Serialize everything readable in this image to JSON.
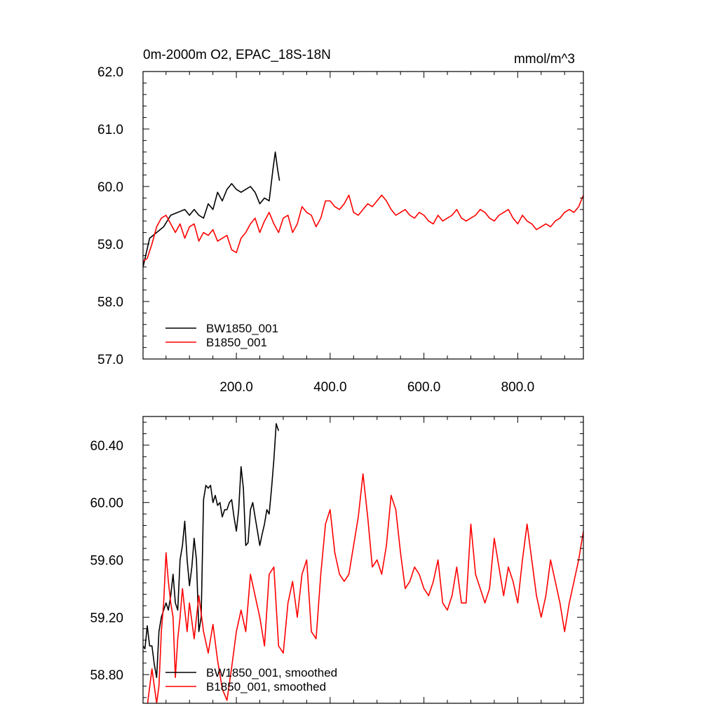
{
  "chart_data": [
    {
      "type": "line",
      "title": "0m-2000m O2, EPAC_18S-18N",
      "units": "mmol/m^3",
      "xlim": [
        1,
        940
      ],
      "ylim": [
        57.0,
        62.0
      ],
      "x_major_ticks": [
        200,
        400,
        600,
        800
      ],
      "x_tick_labels": [
        "200.0",
        "400.0",
        "600.0",
        "800.0"
      ],
      "y_major_ticks": [
        57,
        58,
        59,
        60,
        61,
        62
      ],
      "y_tick_labels": [
        "57.0",
        "58.0",
        "59.0",
        "60.0",
        "61.0",
        "62.0"
      ],
      "legend_position": "bottom-left",
      "series": [
        {
          "name": "BW1850_001",
          "color": "#000000",
          "x": [
            1,
            15,
            30,
            45,
            60,
            75,
            90,
            100,
            110,
            120,
            130,
            140,
            150,
            160,
            170,
            180,
            190,
            200,
            210,
            220,
            230,
            240,
            250,
            260,
            270,
            278,
            283,
            288,
            292
          ],
          "y": [
            58.6,
            59.1,
            59.2,
            59.3,
            59.5,
            59.55,
            59.6,
            59.5,
            59.6,
            59.5,
            59.45,
            59.7,
            59.6,
            59.9,
            59.75,
            59.95,
            60.05,
            59.95,
            59.9,
            59.95,
            60.0,
            59.9,
            59.7,
            59.8,
            59.75,
            60.3,
            60.6,
            60.3,
            60.1
          ]
        },
        {
          "name": "B1850_001",
          "color": "#ff0000",
          "x": [
            1,
            10,
            20,
            30,
            40,
            50,
            60,
            70,
            80,
            90,
            100,
            110,
            120,
            130,
            140,
            150,
            160,
            170,
            180,
            190,
            200,
            210,
            220,
            230,
            240,
            250,
            260,
            270,
            280,
            290,
            300,
            310,
            320,
            330,
            340,
            350,
            360,
            370,
            380,
            390,
            400,
            410,
            420,
            430,
            440,
            450,
            460,
            470,
            480,
            490,
            500,
            510,
            520,
            530,
            540,
            550,
            560,
            570,
            580,
            590,
            600,
            610,
            620,
            630,
            640,
            650,
            660,
            670,
            680,
            690,
            700,
            710,
            720,
            730,
            740,
            750,
            760,
            770,
            780,
            790,
            800,
            810,
            820,
            830,
            840,
            850,
            860,
            870,
            880,
            890,
            900,
            910,
            920,
            930,
            940
          ],
          "y": [
            58.7,
            58.75,
            59.0,
            59.3,
            59.45,
            59.5,
            59.35,
            59.2,
            59.35,
            59.1,
            59.3,
            59.35,
            59.05,
            59.2,
            59.15,
            59.25,
            59.05,
            59.1,
            59.15,
            58.9,
            58.85,
            59.1,
            59.2,
            59.35,
            59.45,
            59.2,
            59.4,
            59.55,
            59.35,
            59.2,
            59.45,
            59.5,
            59.2,
            59.35,
            59.65,
            59.55,
            59.5,
            59.3,
            59.45,
            59.75,
            59.75,
            59.65,
            59.6,
            59.7,
            59.85,
            59.55,
            59.5,
            59.6,
            59.7,
            59.65,
            59.75,
            59.85,
            59.75,
            59.6,
            59.5,
            59.55,
            59.6,
            59.5,
            59.45,
            59.55,
            59.5,
            59.4,
            59.35,
            59.5,
            59.4,
            59.45,
            59.5,
            59.6,
            59.45,
            59.4,
            59.45,
            59.5,
            59.6,
            59.55,
            59.45,
            59.4,
            59.5,
            59.55,
            59.6,
            59.45,
            59.35,
            59.5,
            59.4,
            59.35,
            59.25,
            59.3,
            59.35,
            59.3,
            59.4,
            59.45,
            59.55,
            59.6,
            59.55,
            59.65,
            59.85
          ]
        }
      ]
    },
    {
      "type": "line",
      "xlim": [
        1,
        940
      ],
      "ylim": [
        58.6,
        60.6
      ],
      "y_major_ticks": [
        58.8,
        59.2,
        59.6,
        60.0,
        60.4
      ],
      "y_tick_labels": [
        "58.80",
        "59.20",
        "59.60",
        "60.00",
        "60.40"
      ],
      "legend_position": "bottom-left",
      "series": [
        {
          "name": "BW1850_001, smoothed",
          "color": "#000000",
          "x": [
            1,
            5,
            10,
            15,
            20,
            25,
            30,
            35,
            40,
            45,
            50,
            55,
            60,
            65,
            70,
            75,
            80,
            85,
            90,
            95,
            100,
            105,
            110,
            115,
            120,
            125,
            130,
            135,
            140,
            145,
            150,
            155,
            160,
            165,
            170,
            175,
            180,
            185,
            190,
            195,
            200,
            205,
            210,
            215,
            220,
            225,
            230,
            235,
            240,
            245,
            250,
            255,
            260,
            265,
            270,
            275,
            280,
            285,
            290
          ],
          "y": [
            59.0,
            58.98,
            59.14,
            59.0,
            59.0,
            58.87,
            58.78,
            59.1,
            59.2,
            59.25,
            59.3,
            59.25,
            59.35,
            59.5,
            59.3,
            59.25,
            59.6,
            59.7,
            59.87,
            59.6,
            59.42,
            59.55,
            59.75,
            59.6,
            59.1,
            59.2,
            60.02,
            60.12,
            60.1,
            60.12,
            60.0,
            60.05,
            59.98,
            60.0,
            59.9,
            59.95,
            59.95,
            60.0,
            60.02,
            59.9,
            59.8,
            59.95,
            60.25,
            60.1,
            59.7,
            59.72,
            59.95,
            60.0,
            59.9,
            59.8,
            59.7,
            59.78,
            59.85,
            59.95,
            59.92,
            60.1,
            60.3,
            60.55,
            60.5
          ]
        },
        {
          "name": "B1850_001, smoothed",
          "color": "#ff0000",
          "x": [
            1,
            10,
            20,
            30,
            35,
            40,
            45,
            50,
            55,
            60,
            65,
            70,
            75,
            80,
            85,
            90,
            95,
            100,
            110,
            120,
            130,
            140,
            150,
            160,
            170,
            180,
            190,
            200,
            210,
            220,
            230,
            240,
            250,
            260,
            270,
            280,
            290,
            300,
            310,
            320,
            330,
            340,
            350,
            360,
            370,
            380,
            390,
            400,
            410,
            420,
            430,
            440,
            450,
            460,
            470,
            480,
            490,
            500,
            510,
            520,
            530,
            540,
            550,
            560,
            570,
            580,
            590,
            600,
            610,
            620,
            630,
            640,
            650,
            660,
            670,
            680,
            690,
            700,
            710,
            720,
            730,
            740,
            750,
            760,
            770,
            780,
            790,
            800,
            810,
            820,
            830,
            840,
            850,
            860,
            870,
            880,
            890,
            900,
            910,
            920,
            930,
            940
          ],
          "y": [
            58.6,
            58.58,
            58.84,
            58.6,
            58.72,
            59.1,
            59.3,
            59.65,
            59.45,
            59.3,
            59.2,
            58.78,
            59.05,
            59.2,
            59.4,
            59.25,
            59.1,
            59.3,
            59.05,
            59.35,
            59.1,
            58.95,
            59.15,
            58.9,
            58.7,
            58.62,
            58.85,
            59.1,
            59.25,
            59.1,
            59.5,
            59.35,
            59.2,
            59.0,
            59.5,
            59.55,
            59.0,
            58.95,
            59.3,
            59.45,
            59.2,
            59.5,
            59.6,
            59.1,
            59.05,
            59.5,
            59.85,
            59.95,
            59.65,
            59.5,
            59.45,
            59.5,
            59.7,
            59.9,
            60.2,
            59.9,
            59.55,
            59.6,
            59.5,
            59.7,
            60.05,
            59.95,
            59.65,
            59.4,
            59.45,
            59.55,
            59.5,
            59.4,
            59.35,
            59.45,
            59.6,
            59.3,
            59.25,
            59.35,
            59.55,
            59.3,
            59.3,
            59.85,
            59.5,
            59.4,
            59.3,
            59.4,
            59.75,
            59.55,
            59.35,
            59.55,
            59.45,
            59.3,
            59.6,
            59.85,
            59.6,
            59.35,
            59.2,
            59.35,
            59.6,
            59.45,
            59.3,
            59.1,
            59.3,
            59.45,
            59.6,
            59.8
          ]
        }
      ]
    }
  ]
}
